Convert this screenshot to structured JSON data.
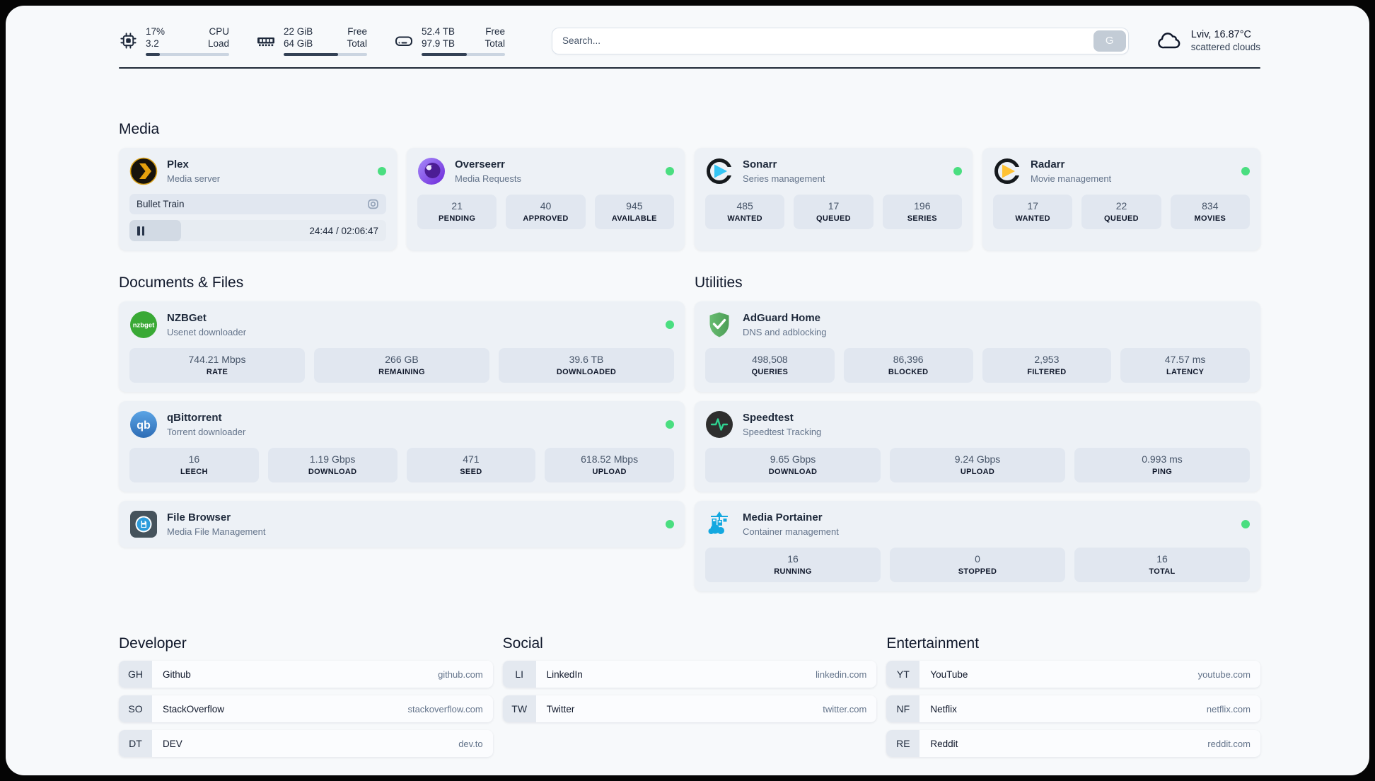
{
  "header": {
    "resources": {
      "cpu": {
        "value_top": "17%",
        "label_top": "CPU",
        "value_bottom": "3.2",
        "label_bottom": "Load",
        "percent": 17
      },
      "memory": {
        "value_top": "22 GiB",
        "label_top": "Free",
        "value_bottom": "64 GiB",
        "label_bottom": "Total",
        "percent": 65
      },
      "disk": {
        "value_top": "52.4 TB",
        "label_top": "Free",
        "value_bottom": "97.9 TB",
        "label_bottom": "Total",
        "percent": 54
      }
    },
    "search": {
      "placeholder": "Search...",
      "provider": "G"
    },
    "weather": {
      "location": "Lviv, 16.87°C",
      "condition": "scattered clouds"
    }
  },
  "sections": {
    "media": "Media",
    "documents": "Documents & Files",
    "utilities": "Utilities"
  },
  "services": {
    "plex": {
      "name": "Plex",
      "description": "Media server",
      "now_playing": "Bullet Train",
      "time": "24:44 / 02:06:47",
      "progress_percent": 20
    },
    "overseerr": {
      "name": "Overseerr",
      "description": "Media Requests",
      "stats": [
        {
          "value": "21",
          "label": "PENDING"
        },
        {
          "value": "40",
          "label": "APPROVED"
        },
        {
          "value": "945",
          "label": "AVAILABLE"
        }
      ]
    },
    "sonarr": {
      "name": "Sonarr",
      "description": "Series management",
      "stats": [
        {
          "value": "485",
          "label": "WANTED"
        },
        {
          "value": "17",
          "label": "QUEUED"
        },
        {
          "value": "196",
          "label": "SERIES"
        }
      ]
    },
    "radarr": {
      "name": "Radarr",
      "description": "Movie management",
      "stats": [
        {
          "value": "17",
          "label": "WANTED"
        },
        {
          "value": "22",
          "label": "QUEUED"
        },
        {
          "value": "834",
          "label": "MOVIES"
        }
      ]
    },
    "nzbget": {
      "name": "NZBGet",
      "description": "Usenet downloader",
      "icon_text": "nzbget",
      "stats": [
        {
          "value": "744.21 Mbps",
          "label": "RATE"
        },
        {
          "value": "266 GB",
          "label": "REMAINING"
        },
        {
          "value": "39.6 TB",
          "label": "DOWNLOADED"
        }
      ]
    },
    "qbittorrent": {
      "name": "qBittorrent",
      "description": "Torrent downloader",
      "icon_text": "qb",
      "stats": [
        {
          "value": "16",
          "label": "LEECH"
        },
        {
          "value": "1.19 Gbps",
          "label": "DOWNLOAD"
        },
        {
          "value": "471",
          "label": "SEED"
        },
        {
          "value": "618.52 Mbps",
          "label": "UPLOAD"
        }
      ]
    },
    "filebrowser": {
      "name": "File Browser",
      "description": "Media File Management"
    },
    "adguard": {
      "name": "AdGuard Home",
      "description": "DNS and adblocking",
      "stats": [
        {
          "value": "498,508",
          "label": "QUERIES"
        },
        {
          "value": "86,396",
          "label": "BLOCKED"
        },
        {
          "value": "2,953",
          "label": "FILTERED"
        },
        {
          "value": "47.57 ms",
          "label": "LATENCY"
        }
      ]
    },
    "speedtest": {
      "name": "Speedtest",
      "description": "Speedtest Tracking",
      "stats": [
        {
          "value": "9.65 Gbps",
          "label": "DOWNLOAD"
        },
        {
          "value": "9.24 Gbps",
          "label": "UPLOAD"
        },
        {
          "value": "0.993 ms",
          "label": "PING"
        }
      ]
    },
    "portainer": {
      "name": "Media Portainer",
      "description": "Container management",
      "stats": [
        {
          "value": "16",
          "label": "RUNNING"
        },
        {
          "value": "0",
          "label": "STOPPED"
        },
        {
          "value": "16",
          "label": "TOTAL"
        }
      ]
    }
  },
  "bookmarks": {
    "developer": {
      "title": "Developer",
      "items": [
        {
          "abbr": "GH",
          "name": "Github",
          "url": "github.com"
        },
        {
          "abbr": "SO",
          "name": "StackOverflow",
          "url": "stackoverflow.com"
        },
        {
          "abbr": "DT",
          "name": "DEV",
          "url": "dev.to"
        }
      ]
    },
    "social": {
      "title": "Social",
      "items": [
        {
          "abbr": "LI",
          "name": "LinkedIn",
          "url": "linkedin.com"
        },
        {
          "abbr": "TW",
          "name": "Twitter",
          "url": "twitter.com"
        }
      ]
    },
    "entertainment": {
      "title": "Entertainment",
      "items": [
        {
          "abbr": "YT",
          "name": "YouTube",
          "url": "youtube.com"
        },
        {
          "abbr": "NF",
          "name": "Netflix",
          "url": "netflix.com"
        },
        {
          "abbr": "RE",
          "name": "Reddit",
          "url": "reddit.com"
        }
      ]
    }
  },
  "colors": {
    "status_online": "#4ade80",
    "progress_fill": "#334155"
  }
}
